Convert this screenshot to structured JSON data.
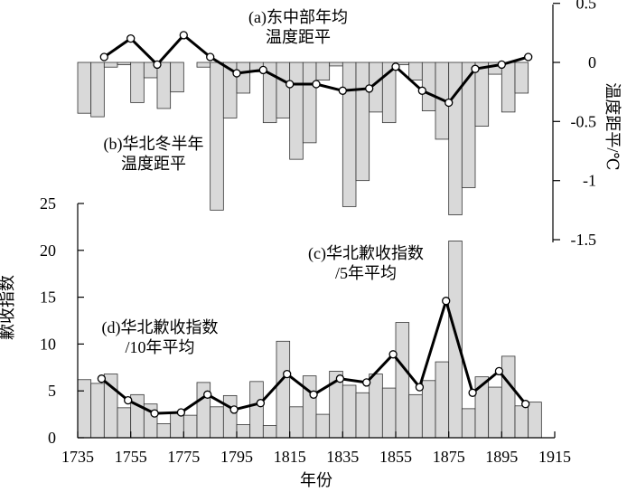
{
  "chart_data": [
    {
      "panel": "a",
      "type": "line",
      "label_lines": [
        "(a)东中部年均",
        "温度距平"
      ],
      "y_axis_title": "温度距平/℃",
      "y_ticks": [
        "0.5",
        "0",
        "-0.5",
        "-1",
        "-1.5"
      ],
      "ylim": [
        -1.5,
        0.5
      ],
      "x": [
        1745,
        1755,
        1765,
        1775,
        1785,
        1795,
        1805,
        1815,
        1825,
        1835,
        1845,
        1855,
        1865,
        1875,
        1885,
        1895,
        1905
      ],
      "values": [
        0.05,
        0.22,
        -0.02,
        0.25,
        0.05,
        -0.1,
        -0.07,
        -0.2,
        -0.2,
        -0.26,
        -0.24,
        -0.04,
        -0.26,
        -0.37,
        -0.06,
        -0.02,
        0.05
      ],
      "note": "series plotted against the left scale: grid y = 5 per 0.25 degC scale unit reading (0 at y=5.6 on left scale)"
    },
    {
      "panel": "b",
      "type": "bar",
      "label_lines": [
        "(b)华北冬半年",
        "温度距平"
      ],
      "ylim": [
        -1.5,
        0.5
      ],
      "x": [
        1736,
        1741,
        1746,
        1751,
        1756,
        1761,
        1766,
        1771,
        1776,
        1781,
        1786,
        1791,
        1796,
        1801,
        1806,
        1811,
        1816,
        1821,
        1826,
        1831,
        1836,
        1841,
        1846,
        1851,
        1856,
        1861,
        1866,
        1871,
        1876,
        1881,
        1886,
        1891,
        1896,
        1901
      ],
      "values": [
        -0.43,
        -0.46,
        -0.04,
        -0.02,
        -0.34,
        -0.13,
        -0.39,
        -0.25,
        0,
        -0.04,
        -1.25,
        -0.47,
        -0.26,
        -0.08,
        -0.51,
        -0.47,
        -0.82,
        -0.68,
        -0.15,
        -0.03,
        -1.22,
        -1.0,
        -0.42,
        -0.51,
        -0.02,
        -0.15,
        -0.41,
        -0.65,
        -1.29,
        -1.06,
        -0.54,
        -0.1,
        -0.42,
        -0.26
      ]
    },
    {
      "panel": "c",
      "type": "line",
      "label_lines": [
        "(c)华北歉收指数",
        "/5年平均"
      ],
      "ylim": [
        0,
        25
      ],
      "x": [
        1744,
        1754,
        1764,
        1774,
        1784,
        1794,
        1804,
        1814,
        1824,
        1834,
        1844,
        1854,
        1864,
        1874,
        1884,
        1894,
        1904
      ],
      "values": [
        6.3,
        4.0,
        2.6,
        2.7,
        4.6,
        3.0,
        3.7,
        6.8,
        4.6,
        6.3,
        5.9,
        8.9,
        5.4,
        14.6,
        4.8,
        7.1,
        3.6
      ]
    },
    {
      "panel": "d",
      "type": "bar",
      "label_lines": [
        "(d)华北歉收指数",
        "/10年平均"
      ],
      "ylim": [
        0,
        25
      ],
      "y_ticks": [
        "0",
        "5",
        "10",
        "15",
        "20",
        "25"
      ],
      "x": [
        1736,
        1741,
        1746,
        1751,
        1756,
        1761,
        1766,
        1771,
        1776,
        1781,
        1786,
        1791,
        1796,
        1801,
        1806,
        1811,
        1816,
        1821,
        1826,
        1831,
        1836,
        1841,
        1846,
        1851,
        1856,
        1861,
        1866,
        1871,
        1876,
        1881,
        1886,
        1891,
        1896,
        1901,
        1906
      ],
      "values": [
        6.2,
        5.8,
        6.8,
        3.2,
        4.6,
        3.6,
        1.5,
        2.6,
        2.4,
        5.9,
        3.3,
        4.5,
        1.4,
        6.0,
        1.3,
        10.3,
        3.3,
        6.6,
        2.5,
        7.1,
        5.6,
        4.8,
        6.8,
        5.3,
        12.3,
        4.6,
        6.1,
        8.1,
        21.0,
        3.1,
        6.5,
        5.4,
        8.7,
        3.4,
        3.8
      ]
    }
  ],
  "x_axis": {
    "title": "年份",
    "ticks": [
      "1735",
      "1755",
      "1775",
      "1795",
      "1815",
      "1835",
      "1855",
      "1875",
      "1895",
      "1915"
    ],
    "xlim": [
      1735,
      1915
    ]
  },
  "bottom_y_axis_title": "歉收指数"
}
